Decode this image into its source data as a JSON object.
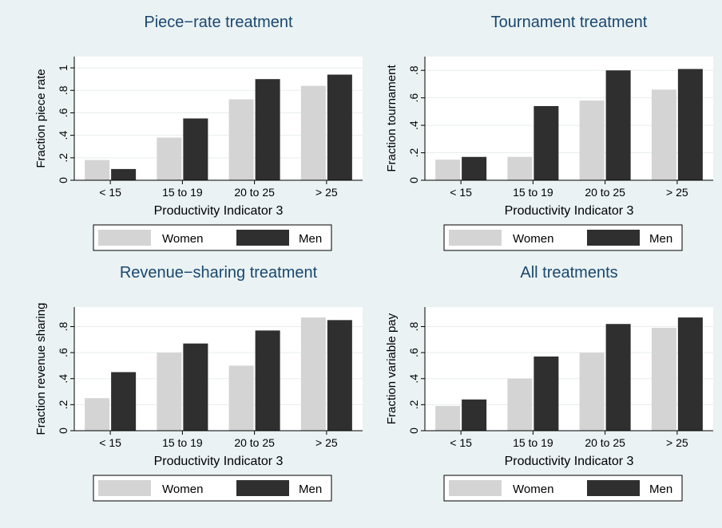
{
  "colors": {
    "background": "#eaf2f3",
    "plot_background": "#ffffff",
    "women": "#d4d4d4",
    "men": "#2f2f2f",
    "title": "#1a476f",
    "grid": "#e8eded"
  },
  "legend": {
    "women": "Women",
    "men": "Men"
  },
  "chart_data": [
    {
      "type": "bar",
      "title": "Piece−rate treatment",
      "xlabel": "Productivity Indicator 3",
      "ylabel": "Fraction piece rate",
      "categories": [
        "< 15",
        "15 to 19",
        "20 to 25",
        "> 25"
      ],
      "series": [
        {
          "name": "Women",
          "values": [
            0.18,
            0.38,
            0.72,
            0.84
          ]
        },
        {
          "name": "Men",
          "values": [
            0.1,
            0.55,
            0.9,
            0.94
          ]
        }
      ],
      "ylim": [
        0,
        1.1
      ],
      "yticks": [
        0,
        0.2,
        0.4,
        0.6,
        0.8,
        1
      ],
      "ytick_labels": [
        "0",
        ".2",
        ".4",
        ".6",
        ".8",
        "1"
      ],
      "grid": true,
      "legend_position": "bottom"
    },
    {
      "type": "bar",
      "title": "Tournament treatment",
      "xlabel": "Productivity Indicator 3",
      "ylabel": "Fraction tournament",
      "categories": [
        "< 15",
        "15 to 19",
        "20 to 25",
        "> 25"
      ],
      "series": [
        {
          "name": "Women",
          "values": [
            0.15,
            0.17,
            0.58,
            0.66
          ]
        },
        {
          "name": "Men",
          "values": [
            0.17,
            0.54,
            0.8,
            0.81
          ]
        }
      ],
      "ylim": [
        0,
        0.9
      ],
      "yticks": [
        0,
        0.2,
        0.4,
        0.6,
        0.8
      ],
      "ytick_labels": [
        "0",
        ".2",
        ".4",
        ".6",
        ".8"
      ],
      "grid": true,
      "legend_position": "bottom"
    },
    {
      "type": "bar",
      "title": "Revenue−sharing treatment",
      "xlabel": "Productivity Indicator 3",
      "ylabel": "Fraction revenue sharing",
      "categories": [
        "< 15",
        "15 to 19",
        "20 to 25",
        "> 25"
      ],
      "series": [
        {
          "name": "Women",
          "values": [
            0.25,
            0.6,
            0.5,
            0.87
          ]
        },
        {
          "name": "Men",
          "values": [
            0.45,
            0.67,
            0.77,
            0.85
          ]
        }
      ],
      "ylim": [
        0,
        0.95
      ],
      "yticks": [
        0,
        0.2,
        0.4,
        0.6,
        0.8
      ],
      "ytick_labels": [
        "0",
        ".2",
        ".4",
        ".6",
        ".8"
      ],
      "grid": true,
      "legend_position": "bottom"
    },
    {
      "type": "bar",
      "title": "All treatments",
      "xlabel": "Productivity Indicator 3",
      "ylabel": "Fraction variable pay",
      "categories": [
        "< 15",
        "15 to 19",
        "20 to 25",
        "> 25"
      ],
      "series": [
        {
          "name": "Women",
          "values": [
            0.19,
            0.4,
            0.6,
            0.79
          ]
        },
        {
          "name": "Men",
          "values": [
            0.24,
            0.57,
            0.82,
            0.87
          ]
        }
      ],
      "ylim": [
        0,
        0.95
      ],
      "yticks": [
        0,
        0.2,
        0.4,
        0.6,
        0.8
      ],
      "ytick_labels": [
        "0",
        ".2",
        ".4",
        ".6",
        ".8"
      ],
      "grid": true,
      "legend_position": "bottom"
    }
  ]
}
